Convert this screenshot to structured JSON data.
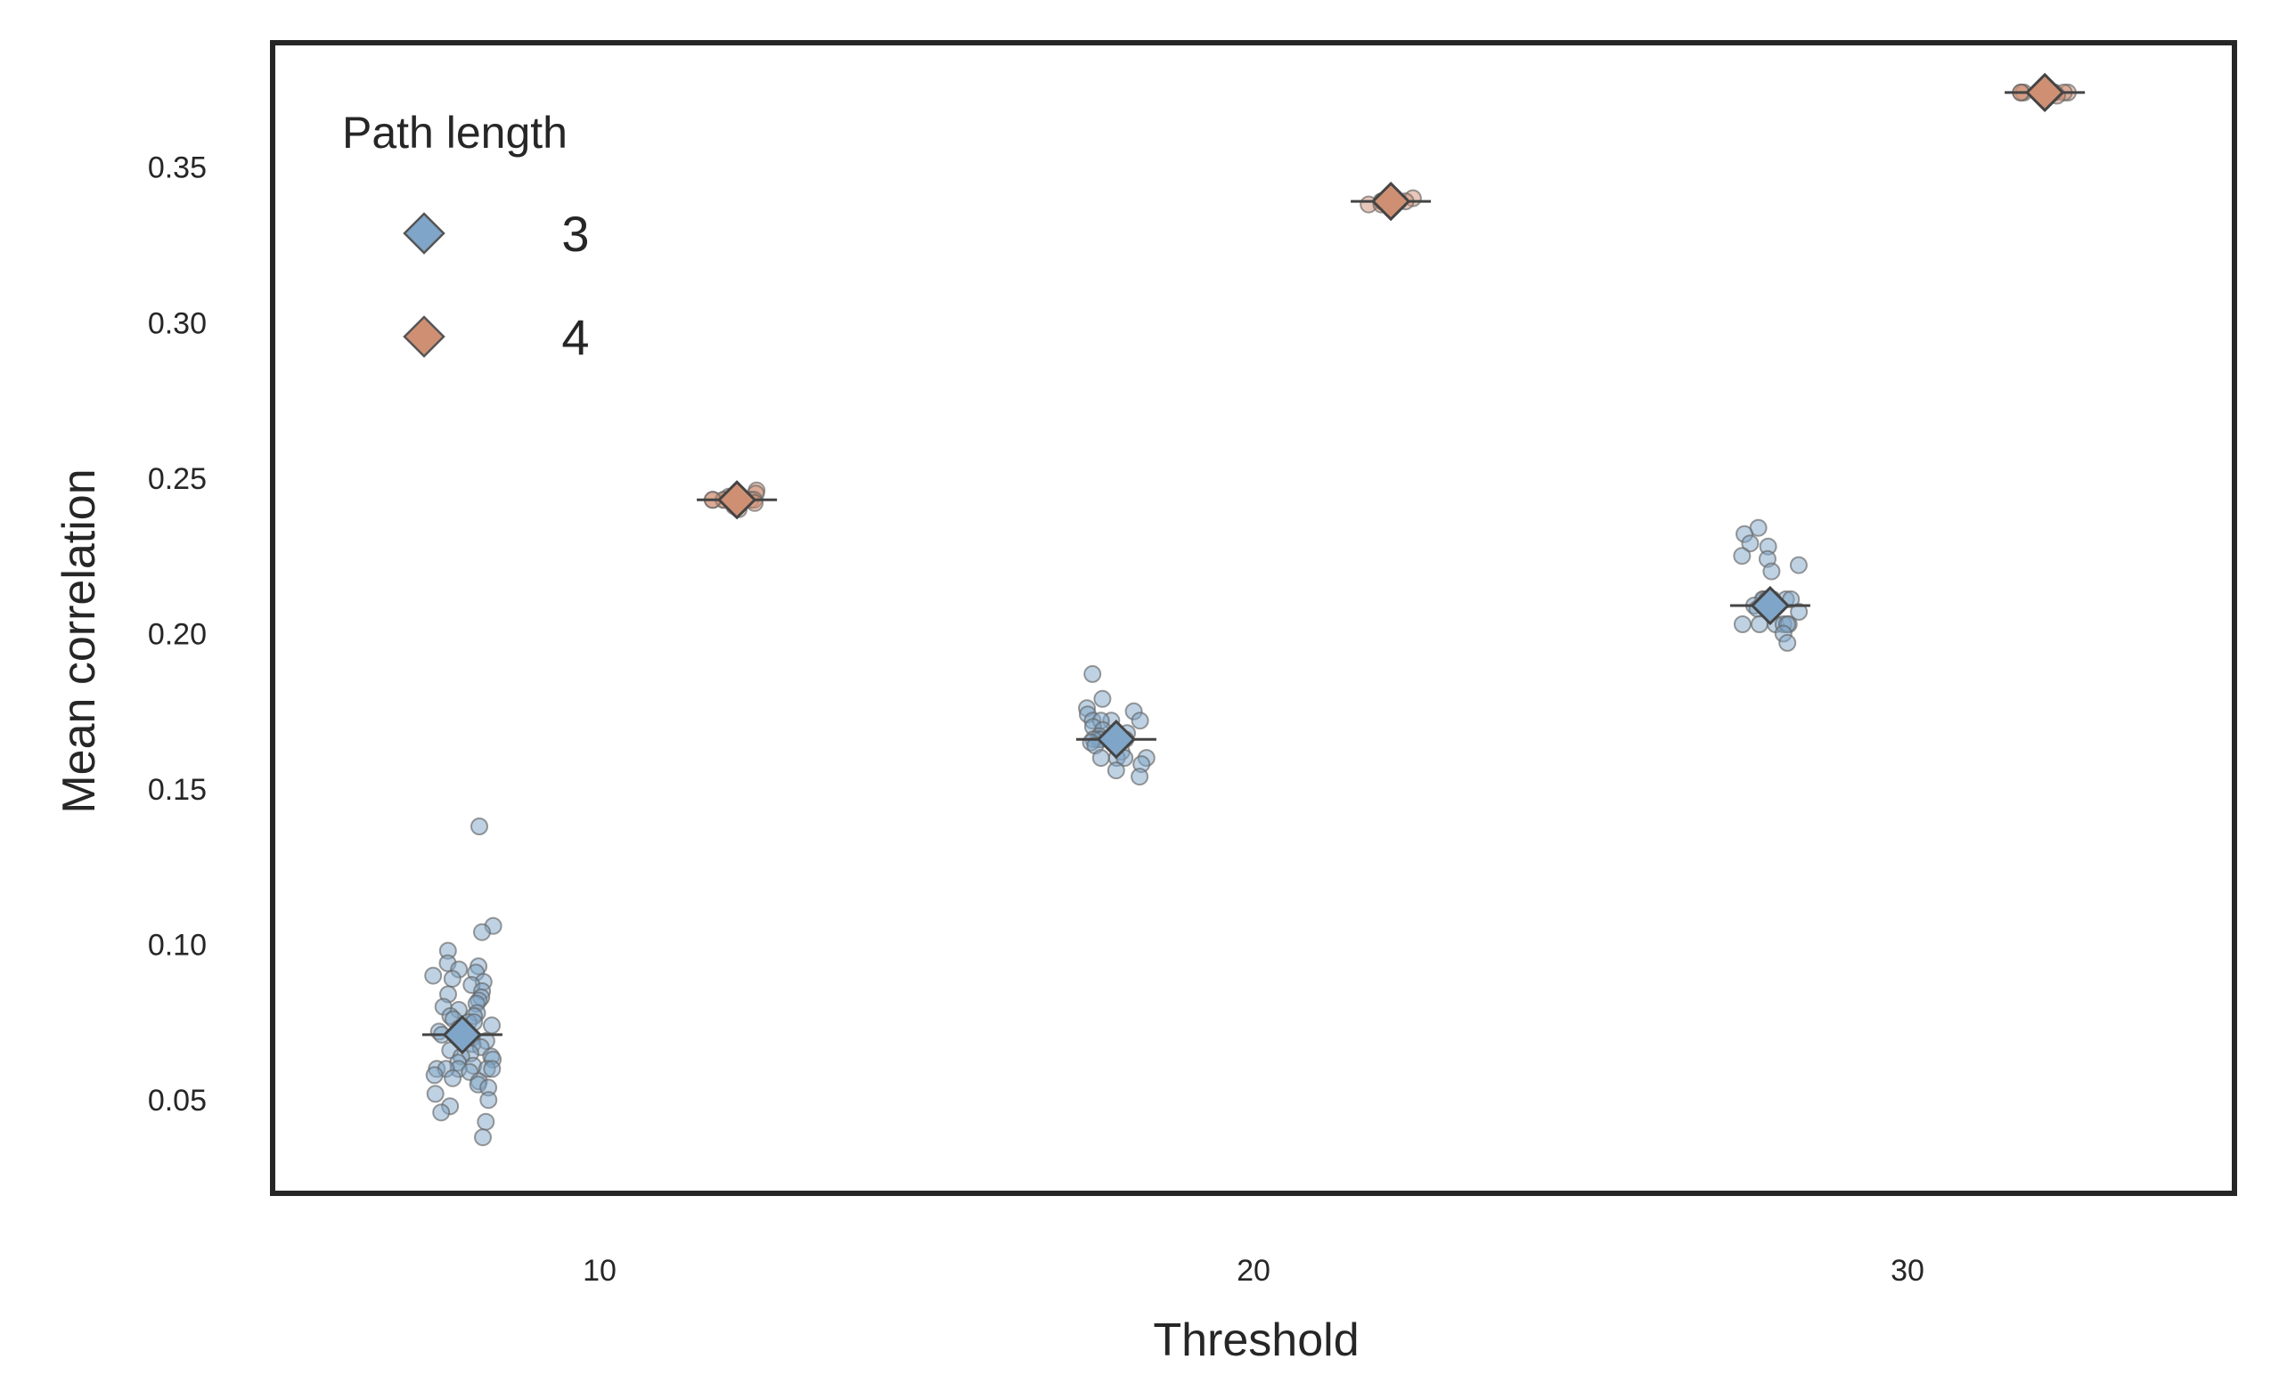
{
  "chart_data": {
    "type": "scatter",
    "title": "",
    "xlabel": "Threshold",
    "ylabel": "Mean correlation",
    "x_ticks": [
      "10",
      "20",
      "30"
    ],
    "y_ticks": [
      "0.05",
      "0.10",
      "0.15",
      "0.20",
      "0.25",
      "0.30",
      "0.35"
    ],
    "x_categories": [
      10,
      20,
      30
    ],
    "ylim": [
      0.02,
      0.39
    ],
    "grid": false,
    "legend": {
      "title": "Path length",
      "position": "top-left",
      "entries": [
        {
          "label": "3",
          "color": "#7fa5c8"
        },
        {
          "label": "4",
          "color": "#cf8f73"
        }
      ]
    },
    "series": [
      {
        "name": "3",
        "color": "#7fa5c8",
        "means": [
          {
            "x": 10,
            "y": 0.071
          },
          {
            "x": 20,
            "y": 0.166
          },
          {
            "x": 30,
            "y": 0.209
          }
        ],
        "points": {
          "10": [
            0.138,
            0.106,
            0.104,
            0.098,
            0.094,
            0.093,
            0.092,
            0.091,
            0.09,
            0.089,
            0.088,
            0.087,
            0.085,
            0.084,
            0.083,
            0.082,
            0.081,
            0.08,
            0.079,
            0.078,
            0.077,
            0.077,
            0.076,
            0.075,
            0.075,
            0.074,
            0.073,
            0.072,
            0.071,
            0.07,
            0.069,
            0.068,
            0.067,
            0.066,
            0.065,
            0.064,
            0.064,
            0.063,
            0.062,
            0.061,
            0.06,
            0.06,
            0.06,
            0.06,
            0.06,
            0.059,
            0.058,
            0.057,
            0.056,
            0.055,
            0.054,
            0.052,
            0.05,
            0.048,
            0.046,
            0.043,
            0.038
          ],
          "20": [
            0.187,
            0.179,
            0.176,
            0.175,
            0.174,
            0.172,
            0.172,
            0.172,
            0.172,
            0.17,
            0.169,
            0.168,
            0.167,
            0.166,
            0.166,
            0.166,
            0.166,
            0.165,
            0.164,
            0.162,
            0.16,
            0.16,
            0.16,
            0.16,
            0.158,
            0.156,
            0.154
          ],
          "30": [
            0.234,
            0.232,
            0.229,
            0.228,
            0.225,
            0.224,
            0.222,
            0.22,
            0.211,
            0.211,
            0.211,
            0.211,
            0.211,
            0.211,
            0.209,
            0.208,
            0.207,
            0.203,
            0.203,
            0.203,
            0.203,
            0.203,
            0.203,
            0.2,
            0.197
          ]
        }
      },
      {
        "name": "4",
        "color": "#cf8f73",
        "means": [
          {
            "x": 10,
            "y": 0.243
          },
          {
            "x": 20,
            "y": 0.339
          },
          {
            "x": 30,
            "y": 0.374
          }
        ],
        "points": {
          "10": [
            0.246,
            0.245,
            0.244,
            0.243,
            0.243,
            0.243,
            0.243,
            0.243,
            0.243,
            0.243,
            0.242,
            0.241,
            0.24
          ],
          "20": [
            0.34,
            0.339,
            0.339,
            0.339,
            0.339,
            0.339,
            0.339,
            0.339,
            0.338,
            0.338
          ],
          "30": [
            0.375,
            0.374,
            0.374,
            0.374,
            0.374,
            0.374,
            0.374,
            0.374,
            0.374,
            0.374,
            0.373
          ]
        }
      }
    ]
  }
}
